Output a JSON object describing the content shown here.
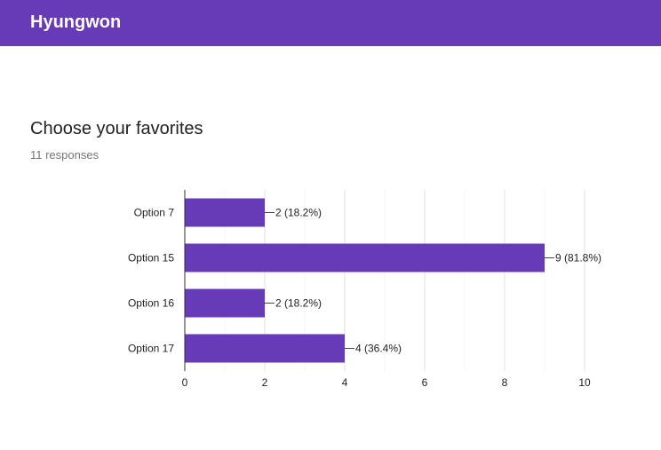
{
  "header": {
    "title": "Hyungwon"
  },
  "question": {
    "title": "Choose your favorites",
    "responses": "11 responses"
  },
  "colors": {
    "accent": "#673ab7",
    "bar": "#673ab7"
  },
  "chart_data": {
    "type": "bar",
    "orientation": "horizontal",
    "categories": [
      "Option 7",
      "Option 15",
      "Option 16",
      "Option 17"
    ],
    "values": [
      2,
      9,
      2,
      4
    ],
    "data_labels": [
      "2 (18.2%)",
      "9 (81.8%)",
      "2 (18.2%)",
      "4 (36.4%)"
    ],
    "xlim": [
      0,
      10
    ],
    "x_ticks": [
      0,
      2,
      4,
      6,
      8,
      10
    ],
    "grid": true
  }
}
